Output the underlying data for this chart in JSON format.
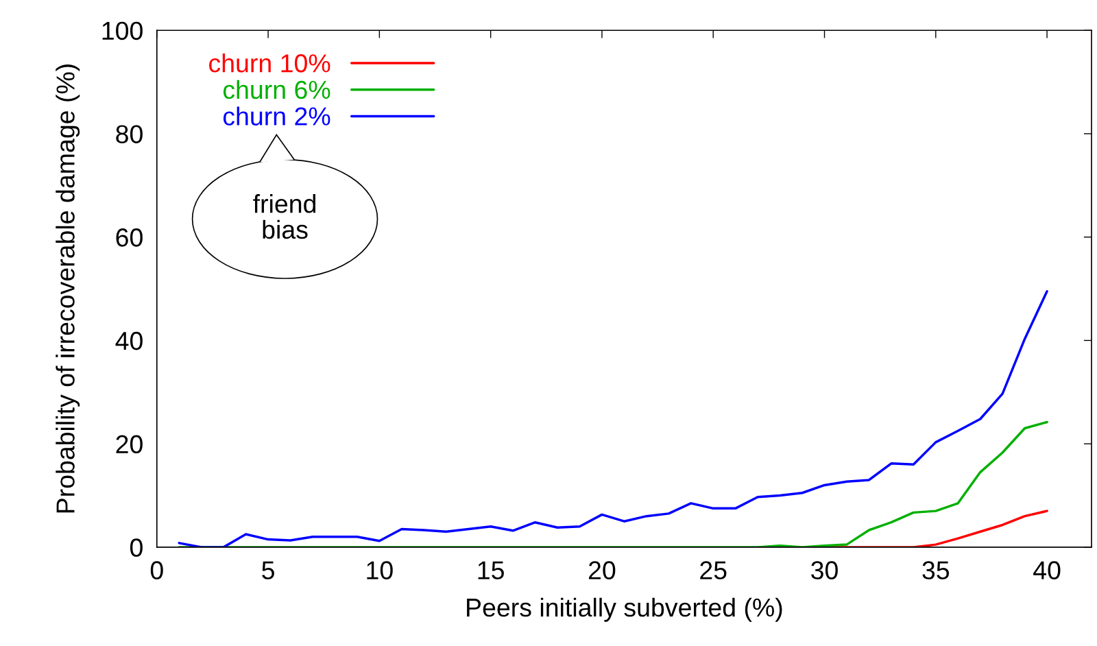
{
  "chart_data": {
    "type": "line",
    "xlabel": "Peers initially subverted (%)",
    "ylabel": "Probability of irrecoverable damage (%)",
    "xlim": [
      0,
      42
    ],
    "ylim": [
      0,
      100
    ],
    "xticks": [
      0,
      5,
      10,
      15,
      20,
      25,
      30,
      35,
      40
    ],
    "yticks": [
      0,
      20,
      40,
      60,
      80,
      100
    ],
    "grid": false,
    "legend": "top left",
    "marker": "none",
    "line_style": "solid",
    "annotations": [
      "friend\nbias"
    ],
    "series": [
      {
        "name": "churn 10%",
        "color": "#ff0000",
        "x": [
          30,
          31,
          32,
          33,
          34,
          35,
          36,
          37,
          38,
          39,
          40
        ],
        "values": [
          0,
          0,
          0,
          0,
          0,
          0.5,
          1.7,
          3,
          4.3,
          6,
          7
        ]
      },
      {
        "name": "churn 6%",
        "color": "#00b000",
        "x": [
          1,
          2,
          3,
          4,
          5,
          6,
          7,
          8,
          9,
          10,
          11,
          12,
          13,
          14,
          15,
          16,
          17,
          18,
          19,
          20,
          21,
          22,
          23,
          24,
          25,
          26,
          27,
          28,
          29,
          30,
          31,
          32,
          33,
          34,
          35,
          36,
          37,
          38,
          39,
          40
        ],
        "values": [
          0,
          0,
          0,
          0,
          0,
          0,
          0,
          0,
          0,
          0,
          0,
          0,
          0,
          0,
          0,
          0,
          0,
          0,
          0,
          0,
          0,
          0,
          0,
          0,
          0,
          0,
          0,
          0.3,
          0,
          0.3,
          0.5,
          3.3,
          4.8,
          6.7,
          7,
          8.5,
          14.5,
          18.3,
          23,
          24.2
        ]
      },
      {
        "name": "churn 2%",
        "color": "#0000ff",
        "x": [
          1,
          2,
          3,
          4,
          5,
          6,
          7,
          8,
          9,
          10,
          11,
          12,
          13,
          14,
          15,
          16,
          17,
          18,
          19,
          20,
          21,
          22,
          23,
          24,
          25,
          26,
          27,
          28,
          29,
          30,
          31,
          32,
          33,
          34,
          35,
          36,
          37,
          38,
          39,
          40
        ],
        "values": [
          0.8,
          0,
          0,
          2.5,
          1.5,
          1.3,
          2,
          2,
          2,
          1.2,
          3.5,
          3.3,
          3,
          3.5,
          4,
          3.2,
          4.8,
          3.8,
          4,
          6.3,
          5,
          6,
          6.5,
          8.5,
          7.5,
          7.5,
          9.7,
          10,
          10.5,
          12,
          12.7,
          13,
          16.2,
          16,
          20.3,
          22.5,
          24.8,
          29.7,
          40.3,
          49.5
        ]
      }
    ]
  }
}
